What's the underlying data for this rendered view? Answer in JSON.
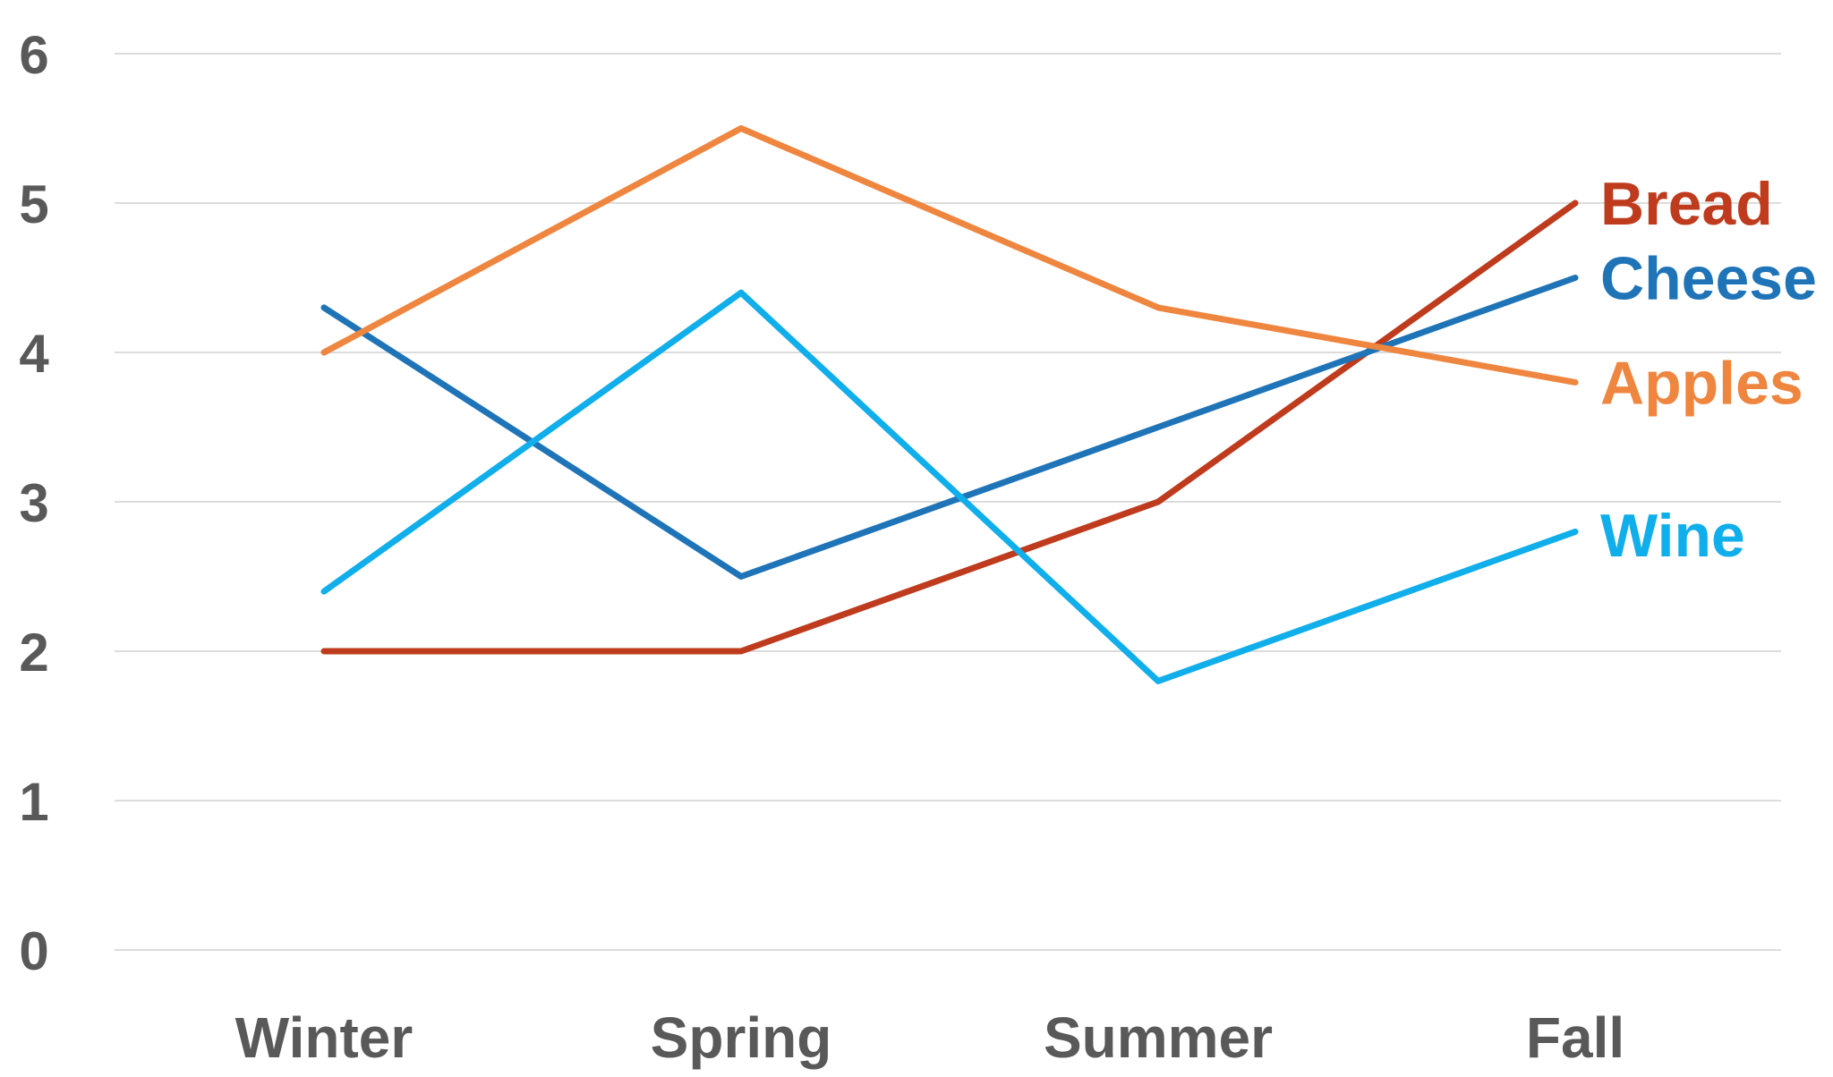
{
  "chart_data": {
    "type": "line",
    "title": "",
    "xlabel": "",
    "ylabel": "",
    "categories": [
      "Winter",
      "Spring",
      "Summer",
      "Fall"
    ],
    "ylim": [
      0,
      6
    ],
    "yticks": [
      0,
      1,
      2,
      3,
      4,
      5,
      6
    ],
    "grid": true,
    "legend": "direct-labels-right",
    "series": [
      {
        "name": "Bread",
        "color": "#bf3b1d",
        "values": [
          2.0,
          2.0,
          3.0,
          5.0
        ]
      },
      {
        "name": "Cheese",
        "color": "#1f74b8",
        "values": [
          4.3,
          2.5,
          3.5,
          4.5
        ]
      },
      {
        "name": "Apples",
        "color": "#ef8640",
        "values": [
          4.0,
          5.5,
          4.3,
          3.8
        ]
      },
      {
        "name": "Wine",
        "color": "#10aeea",
        "values": [
          2.4,
          4.4,
          1.8,
          2.8
        ]
      }
    ]
  }
}
